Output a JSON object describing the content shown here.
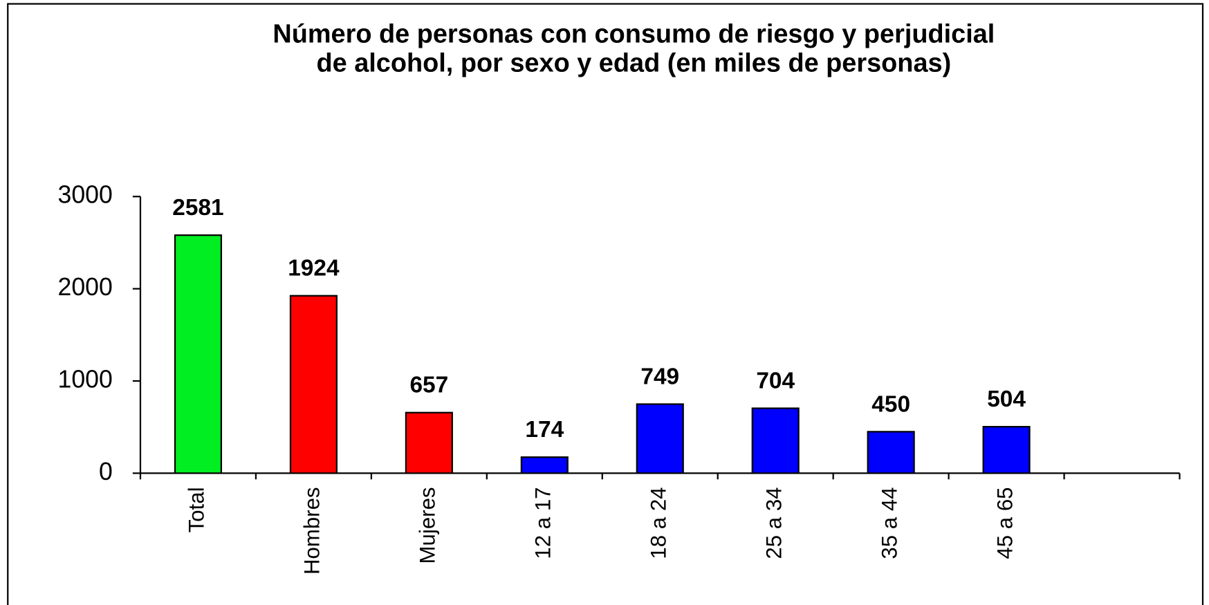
{
  "chart_data": {
    "type": "bar",
    "title": [
      "Número de personas con consumo de riesgo y perjudicial",
      "de alcohol, por sexo y edad (en miles de personas)"
    ],
    "categories": [
      "Total",
      "Hombres",
      "Mujeres",
      "12 a 17",
      "18 a 24",
      "25 a 34",
      "35 a 44",
      "45 a 65",
      null
    ],
    "values": [
      2581,
      1924,
      657,
      174,
      749,
      704,
      450,
      504,
      null
    ],
    "colors": [
      "#00ee22",
      "#ff0000",
      "#ff0000",
      "#0000ff",
      "#0000ff",
      "#0000ff",
      "#0000ff",
      "#0000ff",
      null
    ],
    "ylim": [
      0,
      3000
    ],
    "yticks": [
      0,
      1000,
      2000,
      3000
    ],
    "grid": false
  }
}
